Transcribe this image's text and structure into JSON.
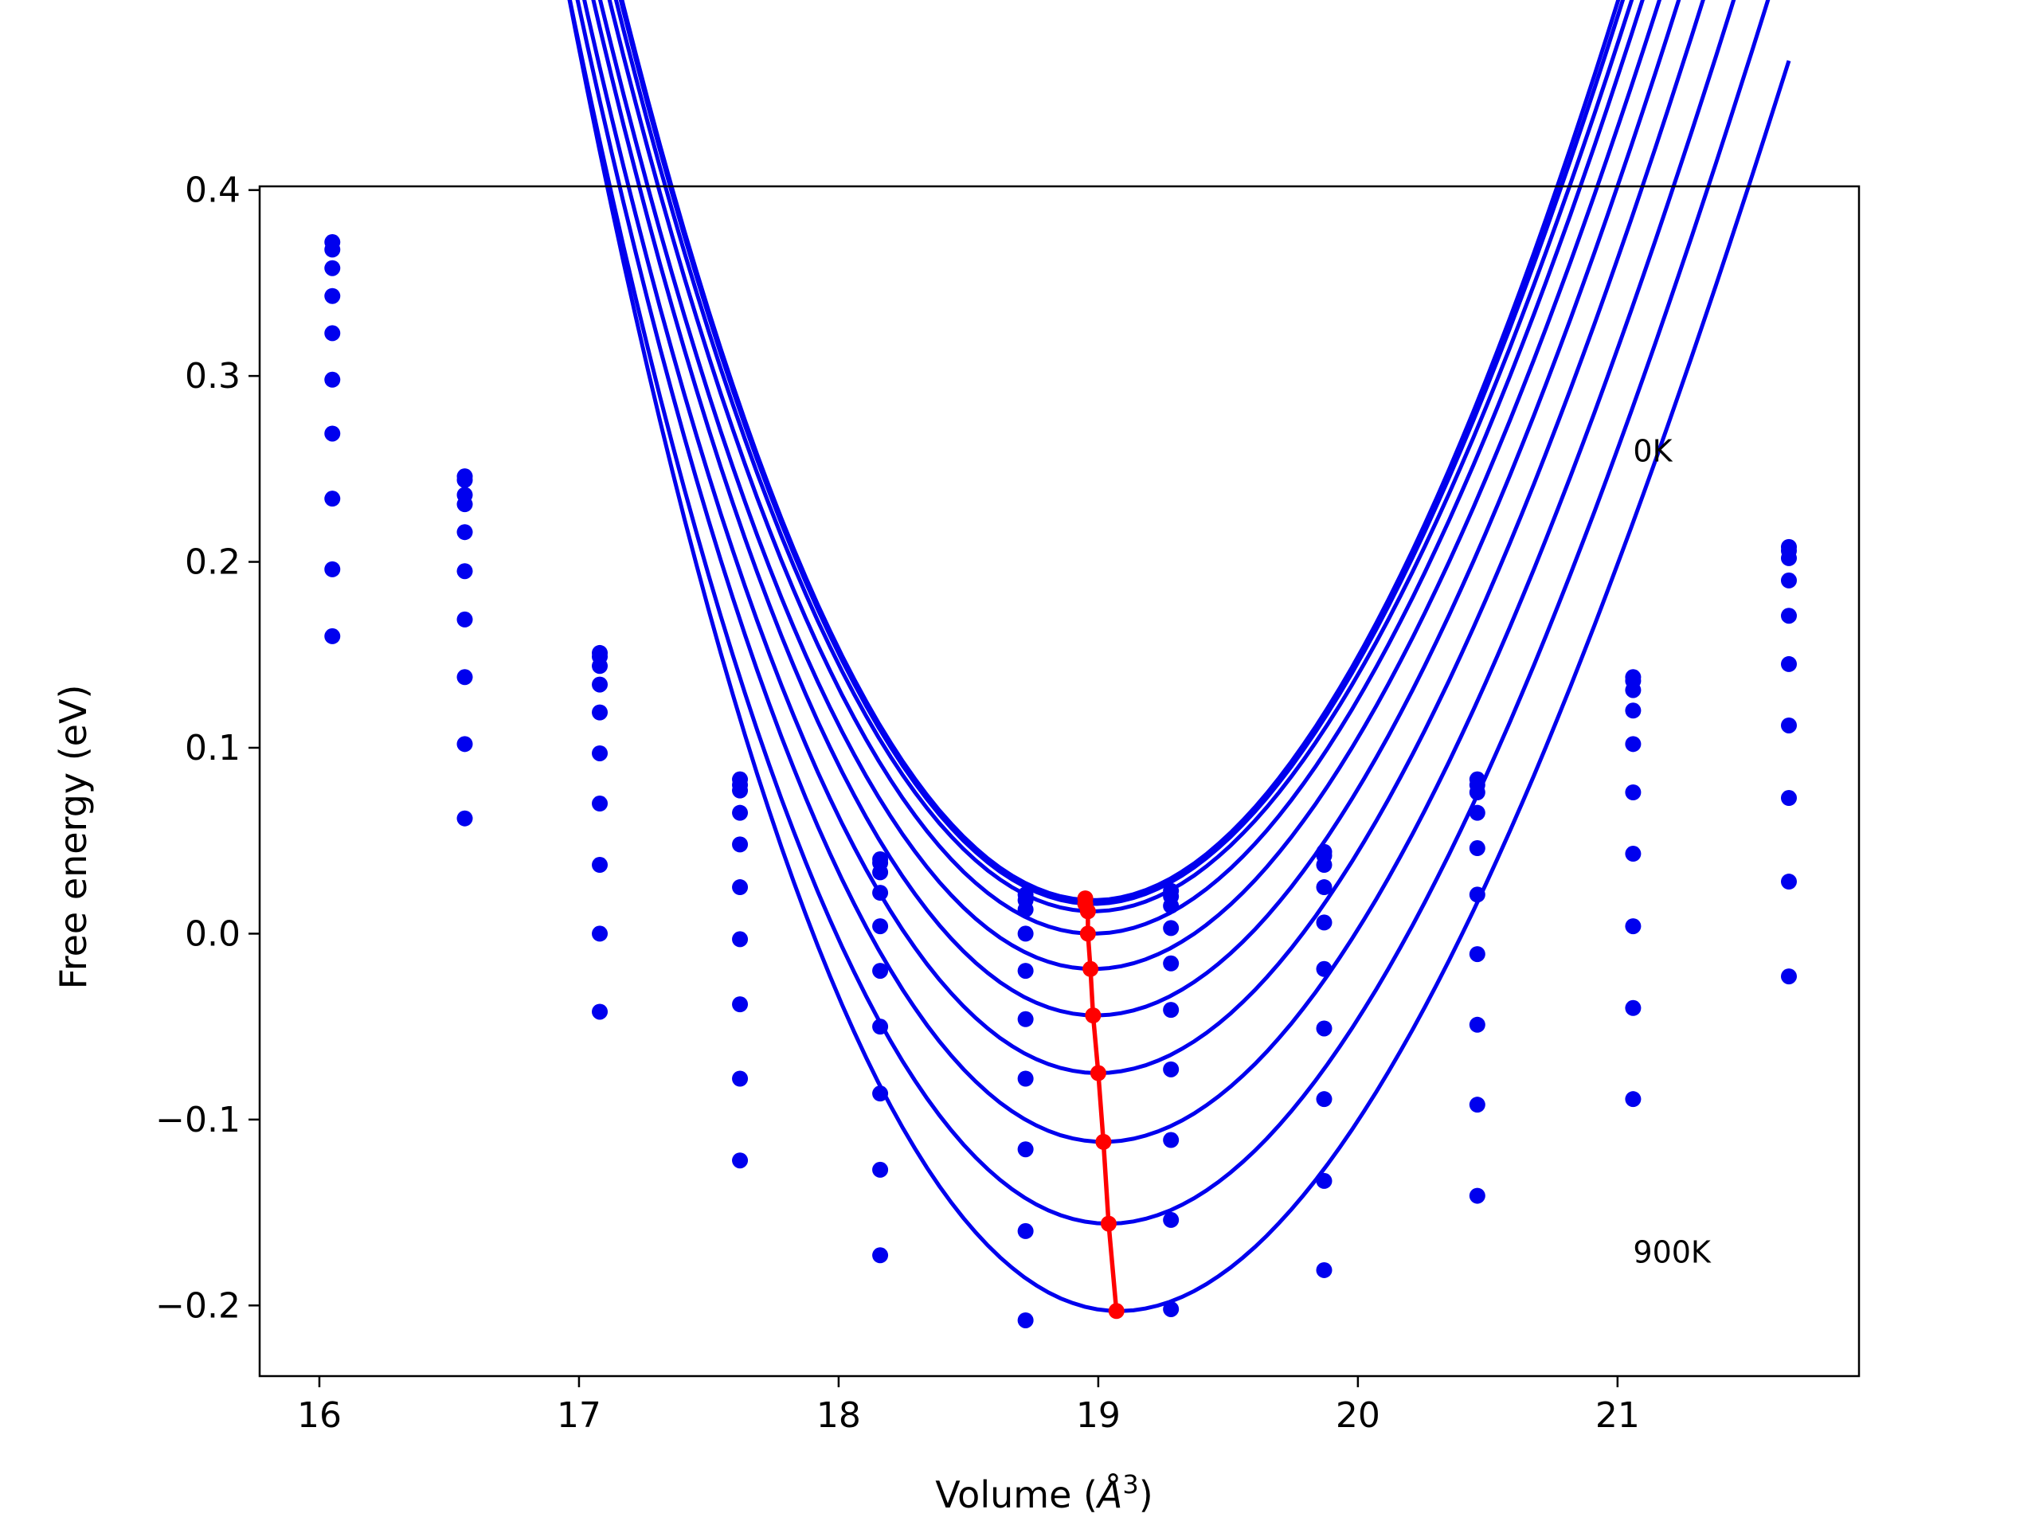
{
  "chart_data": {
    "type": "line",
    "xlabel": "Volume (",
    "xlabel_unit_base": "Å",
    "xlabel_unit_sup": "3",
    "xlabel_tail": ")",
    "ylabel": "Free energy (eV)",
    "xlim": [
      15.77,
      21.93
    ],
    "ylim": [
      -0.238,
      0.402
    ],
    "xticks": [
      16,
      17,
      18,
      19,
      20,
      21
    ],
    "xtick_labels": [
      "16",
      "17",
      "18",
      "19",
      "20",
      "21"
    ],
    "yticks": [
      0.4,
      0.3,
      0.2,
      0.1,
      0.0,
      -0.1,
      -0.2
    ],
    "ytick_labels": [
      "0.4",
      "0.3",
      "0.2",
      "0.1",
      "0.0",
      "−0.1",
      "−0.2"
    ],
    "annotations": [
      {
        "text": "0K",
        "x": 21.06,
        "y": 0.26
      },
      {
        "text": "900K",
        "x": 21.06,
        "y": -0.171
      }
    ],
    "volumes": [
      16.05,
      16.56,
      17.08,
      17.62,
      18.16,
      18.72,
      19.28,
      19.87,
      20.46,
      21.06,
      21.66
    ],
    "series": [
      {
        "values": [
          0.372,
          0.246,
          0.151,
          0.083,
          0.04,
          0.021,
          0.023,
          0.044,
          0.083,
          0.138,
          0.208
        ]
      },
      {
        "values": [
          0.368,
          0.244,
          0.149,
          0.08,
          0.038,
          0.018,
          0.02,
          0.042,
          0.08,
          0.136,
          0.206
        ]
      },
      {
        "values": [
          0.358,
          0.236,
          0.144,
          0.077,
          0.033,
          0.013,
          0.015,
          0.037,
          0.076,
          0.131,
          0.202
        ]
      },
      {
        "values": [
          0.343,
          0.231,
          0.134,
          0.065,
          0.022,
          0.0,
          0.003,
          0.025,
          0.065,
          0.12,
          0.19
        ]
      },
      {
        "values": [
          0.323,
          0.216,
          0.119,
          0.048,
          0.004,
          -0.02,
          -0.016,
          0.006,
          0.046,
          0.102,
          0.171
        ]
      },
      {
        "values": [
          0.298,
          0.195,
          0.097,
          0.025,
          -0.02,
          -0.046,
          -0.041,
          -0.019,
          0.021,
          0.076,
          0.145
        ]
      },
      {
        "values": [
          0.269,
          0.169,
          0.07,
          -0.003,
          -0.05,
          -0.078,
          -0.073,
          -0.051,
          -0.011,
          0.043,
          0.112
        ]
      },
      {
        "values": [
          0.234,
          0.138,
          0.037,
          -0.038,
          -0.086,
          -0.116,
          -0.111,
          -0.089,
          -0.049,
          0.004,
          0.073
        ]
      },
      {
        "values": [
          0.196,
          0.102,
          0.0,
          -0.078,
          -0.127,
          -0.16,
          -0.154,
          -0.133,
          -0.092,
          -0.04,
          0.028
        ]
      },
      {
        "values": [
          0.16,
          0.062,
          -0.042,
          -0.122,
          -0.173,
          -0.208,
          -0.202,
          -0.181,
          -0.141,
          -0.089,
          -0.023
        ]
      }
    ],
    "fit_curves": [
      {
        "x0": 18.98,
        "f0": 0.018,
        "a": 0.1335,
        "b": -0.0075
      },
      {
        "x0": 18.98,
        "f0": 0.016,
        "a": 0.1327,
        "b": -0.0078
      },
      {
        "x0": 18.98,
        "f0": 0.012,
        "a": 0.1305,
        "b": -0.008
      },
      {
        "x0": 18.98,
        "f0": 0.0,
        "a": 0.1295,
        "b": -0.0082
      },
      {
        "x0": 18.98,
        "f0": -0.019,
        "a": 0.1283,
        "b": -0.0086
      },
      {
        "x0": 18.99,
        "f0": -0.044,
        "a": 0.1285,
        "b": -0.009
      },
      {
        "x0": 19.0,
        "f0": -0.075,
        "a": 0.1285,
        "b": -0.0095
      },
      {
        "x0": 19.02,
        "f0": -0.112,
        "a": 0.129,
        "b": -0.0102
      },
      {
        "x0": 19.04,
        "f0": -0.156,
        "a": 0.13,
        "b": -0.011
      },
      {
        "x0": 19.08,
        "f0": -0.203,
        "a": 0.132,
        "b": -0.012
      }
    ],
    "minimum_curve": {
      "x": [
        18.95,
        18.95,
        18.96,
        18.96,
        18.97,
        18.98,
        19.0,
        19.02,
        19.04,
        19.07
      ],
      "y": [
        0.019,
        0.016,
        0.012,
        0.0,
        -0.019,
        -0.044,
        -0.075,
        -0.112,
        -0.156,
        -0.203
      ]
    },
    "colors": {
      "curves": "#0000ee",
      "minimum": "#ff0000",
      "axes": "#000000"
    }
  }
}
